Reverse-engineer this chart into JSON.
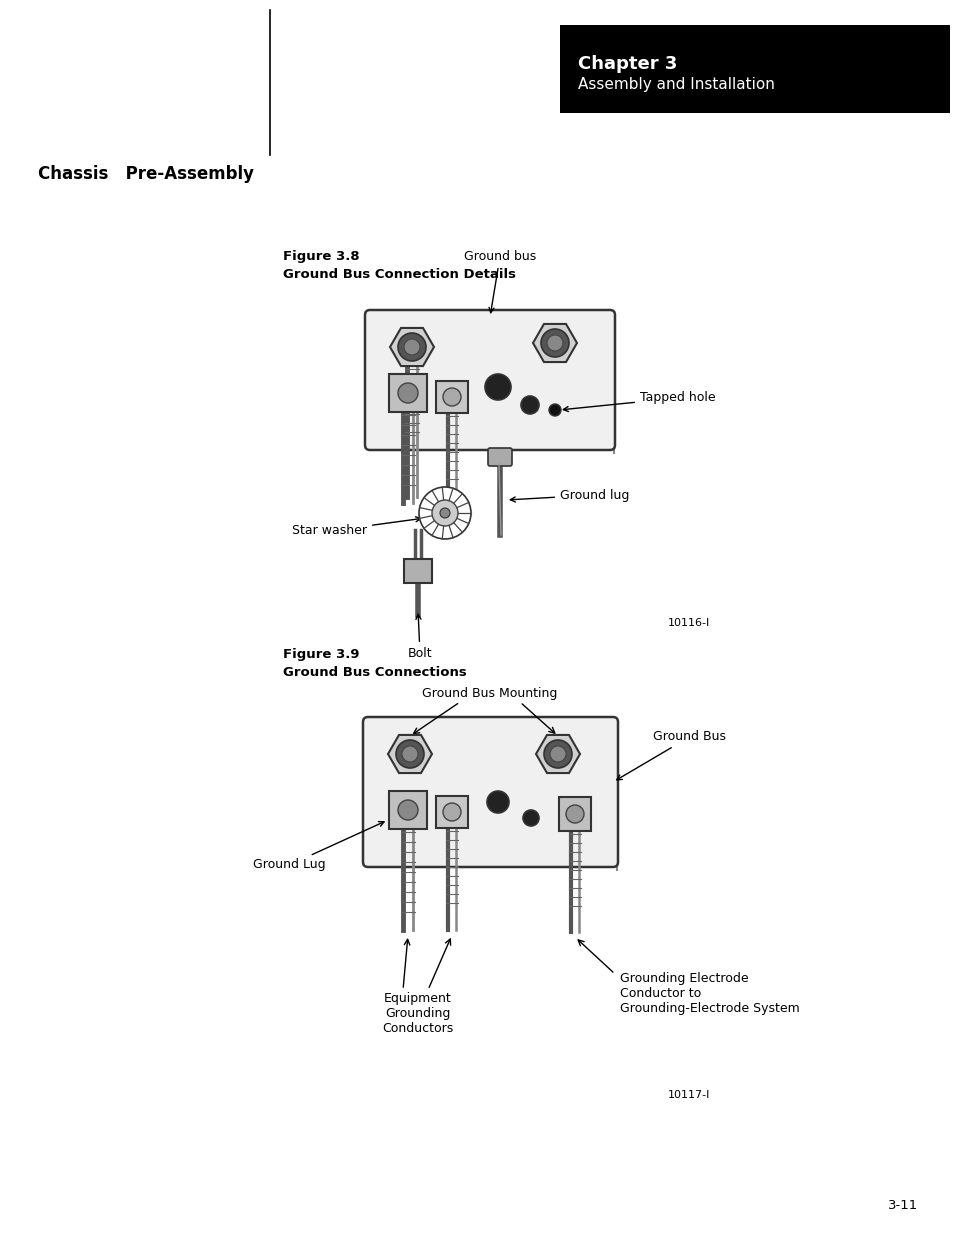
{
  "page_bg": "#ffffff",
  "chapter_box_color": "#000000",
  "chapter_text": "Chapter 3",
  "chapter_subtext": "Assembly and Installation",
  "section_title": "Chassis   Pre-Assembly",
  "fig38_title_line1": "Figure 3.8",
  "fig38_title_line2": "Ground Bus Connection Details",
  "fig39_title_line1": "Figure 3.9",
  "fig39_title_line2": "Ground Bus Connections",
  "page_num": "3-11",
  "fig_code1": "10116-I",
  "fig_code2": "10117-I",
  "label_ground_bus": "Ground bus",
  "label_tapped_hole": "Tapped hole",
  "label_star_washer": "Star washer",
  "label_ground_lug": "Ground lug",
  "label_bolt": "Bolt",
  "label_ground_bus_mounting": "Ground Bus Mounting",
  "label_ground_bus2": "Ground Bus",
  "label_ground_lug2": "Ground Lug",
  "label_equip_grnd": "Equipment\nGrounding\nConductors",
  "label_grnd_electrode": "Grounding Electrode\nConductor to\nGrounding-Electrode System"
}
